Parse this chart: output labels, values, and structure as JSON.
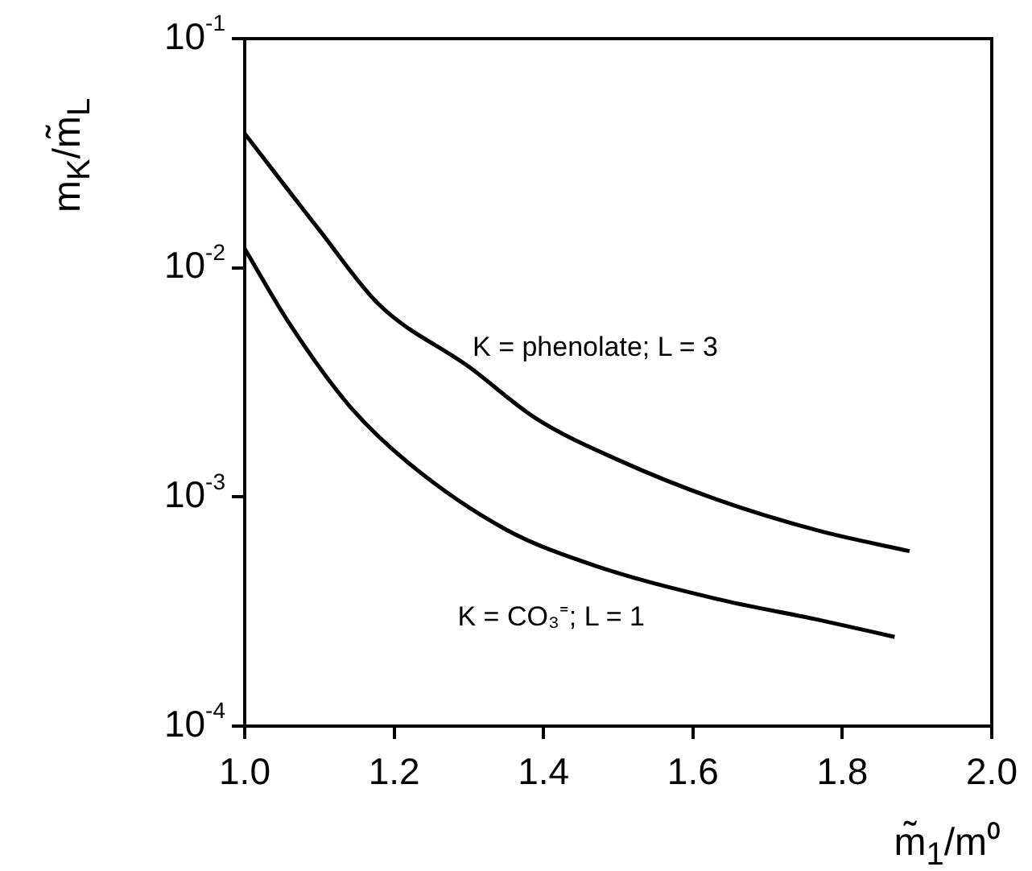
{
  "chart_data": {
    "type": "line",
    "xlabel": "m̃$_{1}$/m⁰",
    "ylabel": "m$_{K}$/m̃$_{L}$",
    "log": "y",
    "grid": false,
    "legend": false,
    "marker": "none",
    "line_style": "solid",
    "xlim": [
      1.0,
      2.0
    ],
    "xticks": [
      {
        "value": 1.0,
        "label": "1.0"
      },
      {
        "value": 1.2,
        "label": "1.2"
      },
      {
        "value": 1.4,
        "label": "1.4"
      },
      {
        "value": 1.6,
        "label": "1.6"
      },
      {
        "value": 1.8,
        "label": "1.8"
      },
      {
        "value": 2.0,
        "label": "2.0"
      }
    ],
    "ylim": [
      0.0001,
      0.1
    ],
    "yticks": [
      {
        "value": 0.1,
        "label": "10$^{-1}$"
      },
      {
        "value": 0.01,
        "label": "10$^{-2}$"
      },
      {
        "value": 0.001,
        "label": "10$^{-3}$"
      },
      {
        "value": 0.0001,
        "label": "10$^{-4}$"
      }
    ],
    "series": [
      {
        "color": "#000000",
        "x": [
          1.0,
          1.1,
          1.18,
          1.3,
          1.39,
          1.5,
          1.63,
          1.77,
          1.89
        ],
        "values": [
          0.0385,
          0.0146,
          0.0069,
          0.0037,
          0.0022,
          0.00145,
          0.00098,
          0.00071,
          0.00058
        ]
      },
      {
        "color": "#000000",
        "x": [
          1.0,
          1.06,
          1.14,
          1.22,
          1.35,
          1.47,
          1.63,
          1.77,
          1.87
        ],
        "values": [
          0.0121,
          0.0057,
          0.0025,
          0.0014,
          0.00072,
          0.0005,
          0.00036,
          0.00029,
          0.000245
        ]
      }
    ],
    "annotations": [
      "K = phenolate; L = 3",
      "K = CO₃⁼; L = 1"
    ]
  }
}
